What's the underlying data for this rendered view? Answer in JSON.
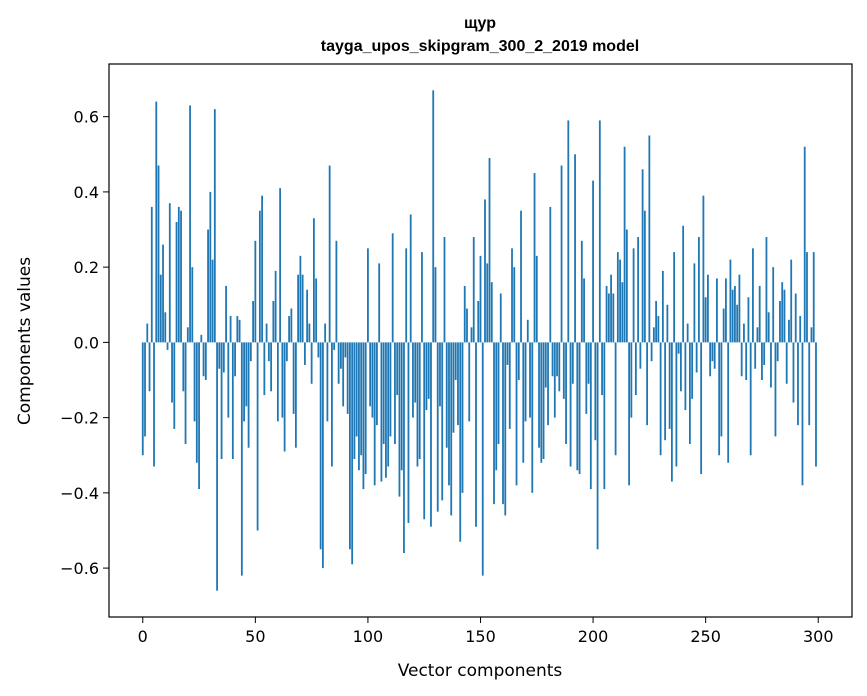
{
  "chart_data": {
    "type": "bar",
    "title": "щур",
    "subtitle": "tayga_upos_skipgram_300_2_2019 model",
    "xlabel": "Vector components",
    "ylabel": "Components values",
    "xlim": [
      -15,
      315
    ],
    "ylim": [
      -0.73,
      0.74
    ],
    "xticks": [
      0,
      50,
      100,
      150,
      200,
      250,
      300
    ],
    "xtick_labels": [
      "0",
      "50",
      "100",
      "150",
      "200",
      "250",
      "300"
    ],
    "yticks": [
      -0.6,
      -0.4,
      -0.2,
      0.0,
      0.2,
      0.4,
      0.6
    ],
    "ytick_labels": [
      "−0.6",
      "−0.4",
      "−0.2",
      "0.0",
      "0.2",
      "0.4",
      "0.6"
    ],
    "grid": false,
    "bar_color": "#1f77b4",
    "values": [
      -0.3,
      -0.25,
      0.05,
      -0.13,
      0.36,
      -0.33,
      0.64,
      0.47,
      0.18,
      0.26,
      0.08,
      -0.02,
      0.37,
      -0.16,
      -0.23,
      0.32,
      0.36,
      0.35,
      -0.13,
      -0.27,
      0.04,
      0.63,
      0.2,
      -0.21,
      -0.32,
      -0.39,
      0.02,
      -0.09,
      -0.1,
      0.3,
      0.4,
      0.22,
      0.62,
      -0.66,
      -0.07,
      -0.31,
      -0.08,
      0.15,
      -0.2,
      0.07,
      -0.31,
      -0.09,
      0.07,
      0.06,
      -0.62,
      -0.21,
      -0.17,
      -0.28,
      -0.05,
      0.11,
      0.27,
      -0.5,
      0.35,
      0.39,
      -0.14,
      0.05,
      -0.05,
      -0.13,
      0.11,
      0.19,
      -0.21,
      0.41,
      -0.2,
      -0.29,
      -0.05,
      0.07,
      0.09,
      -0.19,
      -0.28,
      0.18,
      0.23,
      0.18,
      -0.06,
      0.14,
      0.05,
      -0.11,
      0.33,
      0.17,
      -0.04,
      -0.55,
      -0.6,
      0.05,
      -0.21,
      0.47,
      -0.33,
      -0.02,
      0.27,
      -0.11,
      -0.07,
      -0.17,
      -0.04,
      -0.19,
      -0.55,
      -0.59,
      -0.31,
      -0.25,
      -0.34,
      -0.3,
      -0.39,
      -0.35,
      0.25,
      -0.17,
      -0.2,
      -0.38,
      -0.22,
      0.21,
      -0.37,
      -0.27,
      -0.36,
      -0.33,
      -0.25,
      0.29,
      -0.27,
      -0.14,
      -0.41,
      -0.34,
      -0.56,
      0.25,
      -0.48,
      0.34,
      -0.2,
      -0.16,
      -0.33,
      -0.31,
      0.24,
      -0.47,
      -0.18,
      -0.15,
      -0.49,
      0.67,
      0.2,
      -0.45,
      -0.17,
      -0.42,
      0.28,
      -0.28,
      -0.38,
      -0.46,
      -0.24,
      -0.1,
      -0.22,
      -0.53,
      -0.4,
      0.15,
      0.09,
      -0.21,
      0.04,
      0.28,
      -0.49,
      0.11,
      0.23,
      -0.62,
      0.38,
      0.21,
      0.49,
      0.16,
      -0.43,
      -0.34,
      -0.27,
      0.13,
      -0.43,
      -0.46,
      -0.06,
      -0.23,
      0.25,
      0.2,
      -0.38,
      -0.1,
      0.35,
      -0.32,
      -0.21,
      0.06,
      -0.2,
      -0.4,
      0.45,
      0.23,
      -0.28,
      -0.32,
      -0.31,
      -0.12,
      -0.22,
      0.36,
      -0.09,
      -0.2,
      -0.09,
      -0.13,
      0.47,
      -0.15,
      -0.27,
      0.59,
      -0.33,
      -0.11,
      0.5,
      -0.34,
      -0.35,
      0.27,
      0.17,
      -0.19,
      -0.11,
      -0.39,
      0.43,
      -0.26,
      -0.55,
      0.59,
      -0.14,
      -0.39,
      0.15,
      0.13,
      0.18,
      0.13,
      -0.3,
      0.24,
      0.22,
      0.16,
      0.52,
      0.3,
      -0.38,
      -0.2,
      0.25,
      -0.14,
      0.28,
      -0.07,
      0.46,
      0.35,
      -0.22,
      0.55,
      -0.05,
      0.04,
      0.11,
      0.07,
      -0.3,
      0.19,
      -0.26,
      0.1,
      -0.23,
      -0.37,
      0.24,
      -0.33,
      -0.03,
      -0.13,
      0.31,
      -0.18,
      0.05,
      -0.27,
      -0.15,
      0.21,
      -0.08,
      0.28,
      -0.35,
      0.39,
      0.12,
      0.18,
      -0.09,
      -0.05,
      -0.07,
      0.17,
      -0.3,
      -0.25,
      0.09,
      0.17,
      -0.32,
      0.22,
      0.14,
      0.15,
      0.1,
      0.18,
      -0.09,
      0.05,
      -0.1,
      0.12,
      -0.3,
      0.25,
      -0.07,
      0.04,
      0.15,
      -0.1,
      -0.06,
      0.28,
      0.08,
      -0.12,
      0.2,
      -0.25,
      -0.05,
      0.11,
      0.16,
      0.14,
      -0.11,
      0.06,
      0.22,
      -0.16,
      0.13,
      -0.22,
      0.07,
      -0.38,
      0.52,
      0.24,
      -0.22,
      0.04,
      0.24,
      -0.33
    ]
  }
}
